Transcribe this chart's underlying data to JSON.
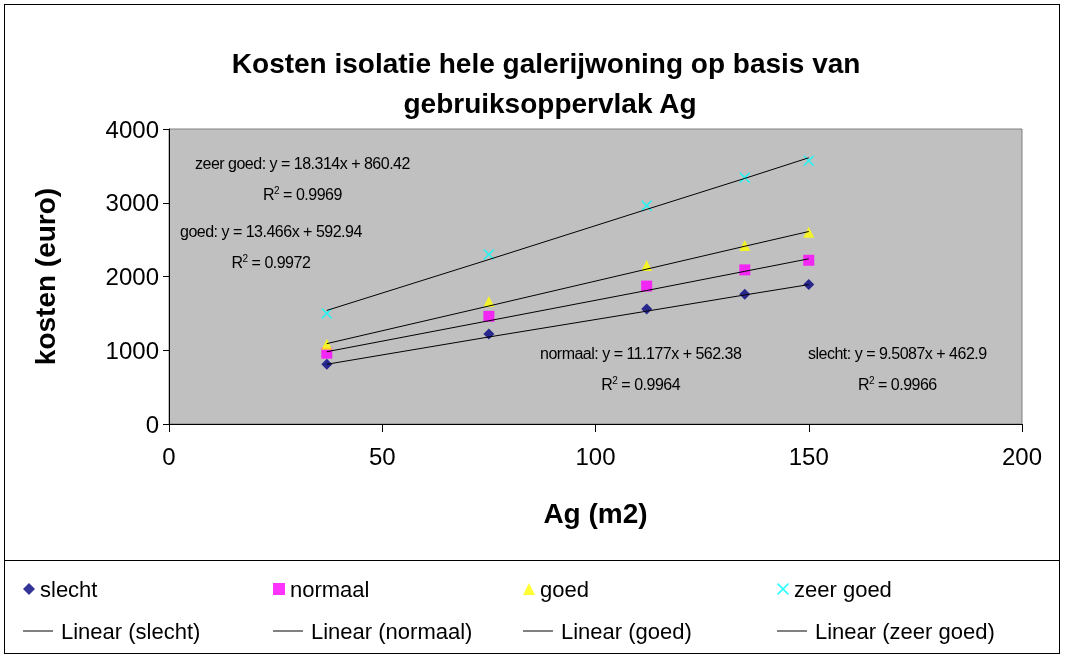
{
  "chart_data": {
    "type": "scatter",
    "title": "Kosten isolatie hele galerijwoning op basis van gebruiksoppervlak Ag",
    "xlabel": "Ag (m2)",
    "ylabel": "kosten (euro)",
    "x": [
      37,
      75,
      112,
      135,
      150
    ],
    "series": [
      {
        "name": "slecht",
        "color": "#000080",
        "marker": "diamond",
        "values": [
          810,
          1220,
          1560,
          1760,
          1890
        ]
      },
      {
        "name": "normaal",
        "color": "#ff00ff",
        "marker": "square",
        "values": [
          960,
          1460,
          1870,
          2090,
          2220
        ]
      },
      {
        "name": "goed",
        "color": "#ffff00",
        "marker": "triangle",
        "values": [
          1080,
          1660,
          2150,
          2420,
          2600
        ]
      },
      {
        "name": "zeer goed",
        "color": "#00ffff",
        "marker": "cross",
        "values": [
          1500,
          2300,
          2960,
          3340,
          3570
        ]
      },
      {
        "name": "Linear (slecht)",
        "type": "line",
        "color": "#000000",
        "marker": "none",
        "values": [
          810,
          1180,
          1530,
          1750,
          1890
        ]
      },
      {
        "name": "Linear (normaal)",
        "type": "line",
        "color": "#000000",
        "marker": "none",
        "values": [
          980,
          1400,
          1810,
          2070,
          2240
        ]
      },
      {
        "name": "Linear (goed)",
        "type": "line",
        "color": "#000000",
        "marker": "none",
        "values": [
          1090,
          1600,
          2100,
          2410,
          2610
        ]
      },
      {
        "name": "Linear (zeer goed)",
        "type": "line",
        "color": "#000000",
        "marker": "none",
        "values": [
          1540,
          2230,
          2910,
          3330,
          3610
        ]
      }
    ],
    "annotations": [
      "zeer goed: y = 18.314x + 860.42\nR$^{2}$ = 0.9969",
      "goed: y = 13.466x + 592.94\nR$^{2}$ = 0.9972",
      "normaal: y = 11.177x + 562.38\nR$^{2}$ = 0.9964",
      "slecht: y = 9.5087x + 462.9\nR$^{2}$ = 0.9966"
    ],
    "xlim": [
      0,
      200
    ],
    "xticks": [
      0,
      50,
      100,
      150,
      200
    ],
    "ylim": [
      0,
      4000
    ],
    "yticks": [
      0,
      1000,
      2000,
      3000,
      4000
    ],
    "grid": false,
    "legend": "bottom",
    "line_style": "solid"
  }
}
